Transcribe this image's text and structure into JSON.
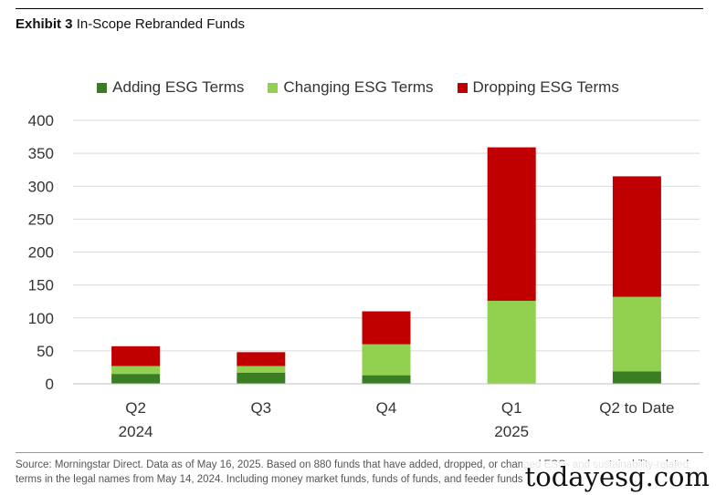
{
  "header": {
    "exhibit_label": "Exhibit 3",
    "title": "In-Scope Rebranded Funds"
  },
  "chart_data": {
    "type": "bar",
    "stacked": true,
    "title": "In-Scope Rebranded Funds",
    "categories": [
      {
        "line1": "Q2",
        "line2": "2024"
      },
      {
        "line1": "Q3",
        "line2": ""
      },
      {
        "line1": "Q4",
        "line2": ""
      },
      {
        "line1": "Q1",
        "line2": "2025"
      },
      {
        "line1": "Q2 to Date",
        "line2": ""
      }
    ],
    "series": [
      {
        "name": "Adding ESG Terms",
        "color": "#3a7d22",
        "values": [
          15,
          17,
          13,
          0,
          19
        ]
      },
      {
        "name": "Changing ESG Terms",
        "color": "#92d050",
        "values": [
          12,
          10,
          47,
          126,
          113
        ]
      },
      {
        "name": "Dropping ESG Terms",
        "color": "#c00000",
        "values": [
          30,
          21,
          50,
          233,
          183
        ]
      }
    ],
    "yticks": [
      0,
      50,
      100,
      150,
      200,
      250,
      300,
      350,
      400
    ],
    "ylim": [
      0,
      400
    ],
    "xlabel": "",
    "ylabel": "",
    "grid": true,
    "legend_position": "top"
  },
  "footer": {
    "source_text": "Source: Morningstar Direct. Data as of May 16, 2025. Based on 880 funds that have added, dropped, or changed ESG- and sustainability-related terms in the legal names from May 14, 2024. Including money market funds, funds of funds, and feeder funds."
  },
  "watermark": {
    "text": "todayesg.com"
  }
}
